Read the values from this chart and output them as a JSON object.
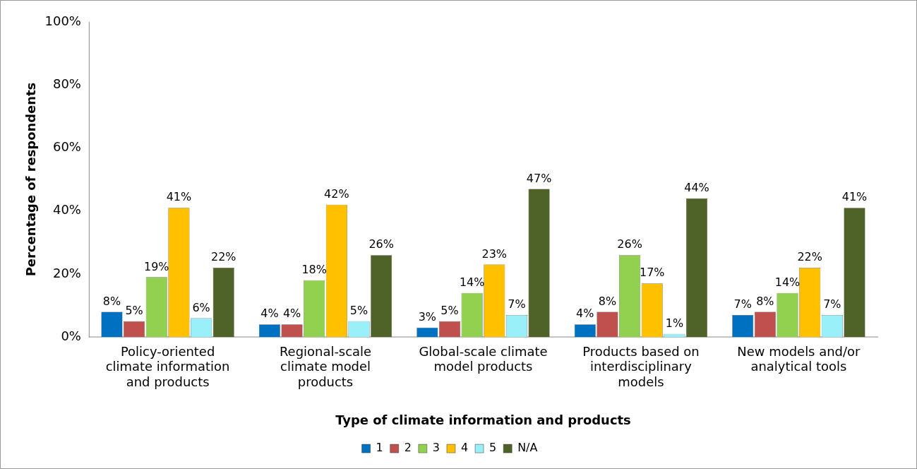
{
  "chart_data": {
    "type": "bar",
    "xlabel": "Type of climate information and products",
    "ylabel": "Percentage of respondents",
    "categories": [
      "Policy-oriented climate information and products",
      "Regional-scale climate model products",
      "Global-scale climate model products",
      "Products based on interdisciplinary models",
      "New models and/or analytical tools"
    ],
    "series": [
      {
        "name": "1",
        "color": "#0070c0",
        "values": [
          8,
          4,
          3,
          4,
          7
        ],
        "value_labels": [
          "8%",
          "4%",
          "3%",
          "4%",
          "7%"
        ]
      },
      {
        "name": "2",
        "color": "#c0504d",
        "values": [
          5,
          4,
          5,
          8,
          8
        ],
        "value_labels": [
          "5%",
          "4%",
          "5%",
          "8%",
          "8%"
        ]
      },
      {
        "name": "3",
        "color": "#92d050",
        "values": [
          19,
          18,
          14,
          26,
          14
        ],
        "value_labels": [
          "19%",
          "18%",
          "14%",
          "26%",
          "14%"
        ]
      },
      {
        "name": "4",
        "color": "#ffc000",
        "values": [
          41,
          42,
          23,
          17,
          22
        ],
        "value_labels": [
          "41%",
          "42%",
          "23%",
          "17%",
          "22%"
        ]
      },
      {
        "name": "5",
        "color": "#99f0f8",
        "values": [
          6,
          5,
          7,
          1,
          7
        ],
        "value_labels": [
          "6%",
          "5%",
          "7%",
          "1%",
          "7%"
        ]
      },
      {
        "name": "N/A",
        "color": "#4f6228",
        "values": [
          22,
          26,
          47,
          44,
          41
        ],
        "value_labels": [
          "22%",
          "26%",
          "47%",
          "44%",
          "41%"
        ]
      }
    ],
    "ylim": [
      0,
      100
    ],
    "yticks": [
      {
        "value": 0,
        "label": "0%"
      },
      {
        "value": 20,
        "label": "20%"
      },
      {
        "value": 40,
        "label": "40%"
      },
      {
        "value": 60,
        "label": "60%"
      },
      {
        "value": 80,
        "label": "80%"
      },
      {
        "value": 100,
        "label": "100%"
      }
    ],
    "grid": false,
    "legend": "bottom"
  }
}
